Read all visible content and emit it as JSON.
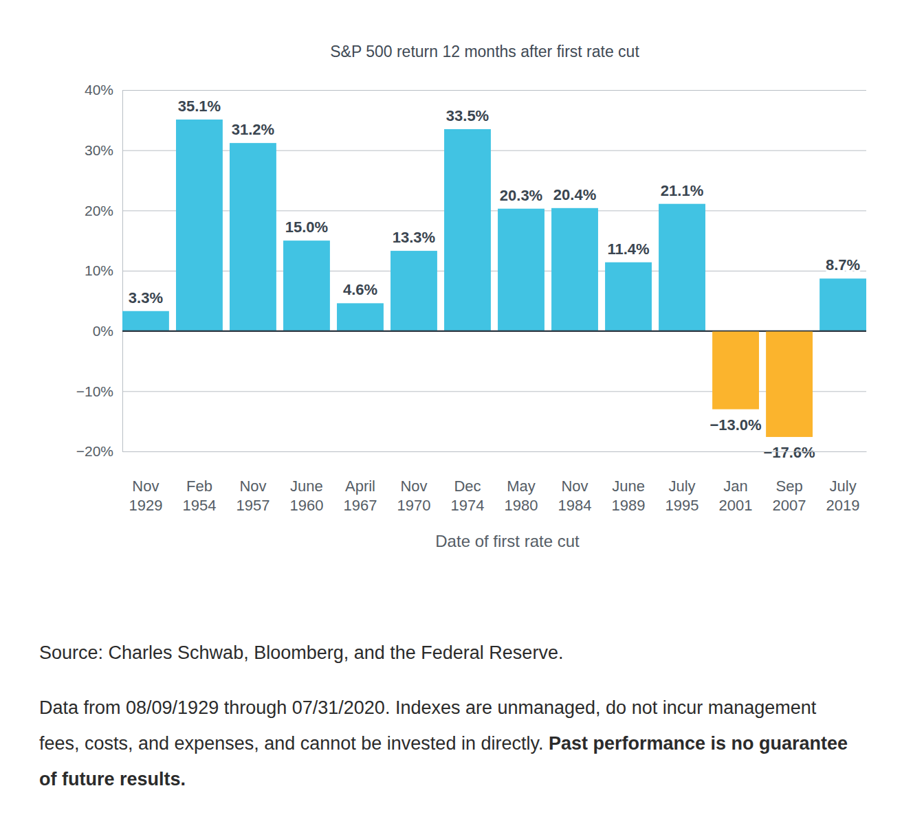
{
  "chart_data": {
    "type": "bar",
    "title": "S&P 500 return 12 months after first rate cut",
    "x_label": "Date of first rate cut",
    "categories": [
      "Nov 1929",
      "Feb 1954",
      "Nov 1957",
      "June 1960",
      "April 1967",
      "Nov 1970",
      "Dec 1974",
      "May 1980",
      "Nov 1984",
      "June 1989",
      "July 1995",
      "Jan 2001",
      "Sep 2007",
      "July 2019"
    ],
    "values": [
      3.3,
      35.1,
      31.2,
      15.0,
      4.6,
      13.3,
      33.5,
      20.3,
      20.4,
      11.4,
      21.1,
      -13.0,
      -17.6,
      8.7
    ],
    "value_labels": [
      "3.3%",
      "35.1%",
      "31.2%",
      "15.0%",
      "4.6%",
      "13.3%",
      "33.5%",
      "20.3%",
      "20.4%",
      "11.4%",
      "21.1%",
      "−13.0%",
      "−17.6%",
      "8.7%"
    ],
    "colors": [
      "#41c3e3",
      "#41c3e3",
      "#41c3e3",
      "#41c3e3",
      "#41c3e3",
      "#41c3e3",
      "#41c3e3",
      "#41c3e3",
      "#41c3e3",
      "#41c3e3",
      "#41c3e3",
      "#fbb42d",
      "#fbb42d",
      "#41c3e3"
    ],
    "ylim": [
      -20,
      40
    ],
    "yticks": [
      {
        "value": -20,
        "label": "−20%"
      },
      {
        "value": -10,
        "label": "−10%"
      },
      {
        "value": 0,
        "label": "0%"
      },
      {
        "value": 10,
        "label": "10%"
      },
      {
        "value": 20,
        "label": "20%"
      },
      {
        "value": 30,
        "label": "30%"
      },
      {
        "value": 40,
        "label": "40%"
      }
    ],
    "grid": true,
    "data_labels": true
  },
  "footer": {
    "source": "Source: Charles Schwab, Bloomberg, and the Federal Reserve.",
    "note": "Data from 08/09/1929 through 07/31/2020. Indexes are unmanaged, do not incur management fees, costs, and expenses, and cannot be invested in directly.",
    "note_bold": "Past performance is no guarantee of future results."
  }
}
